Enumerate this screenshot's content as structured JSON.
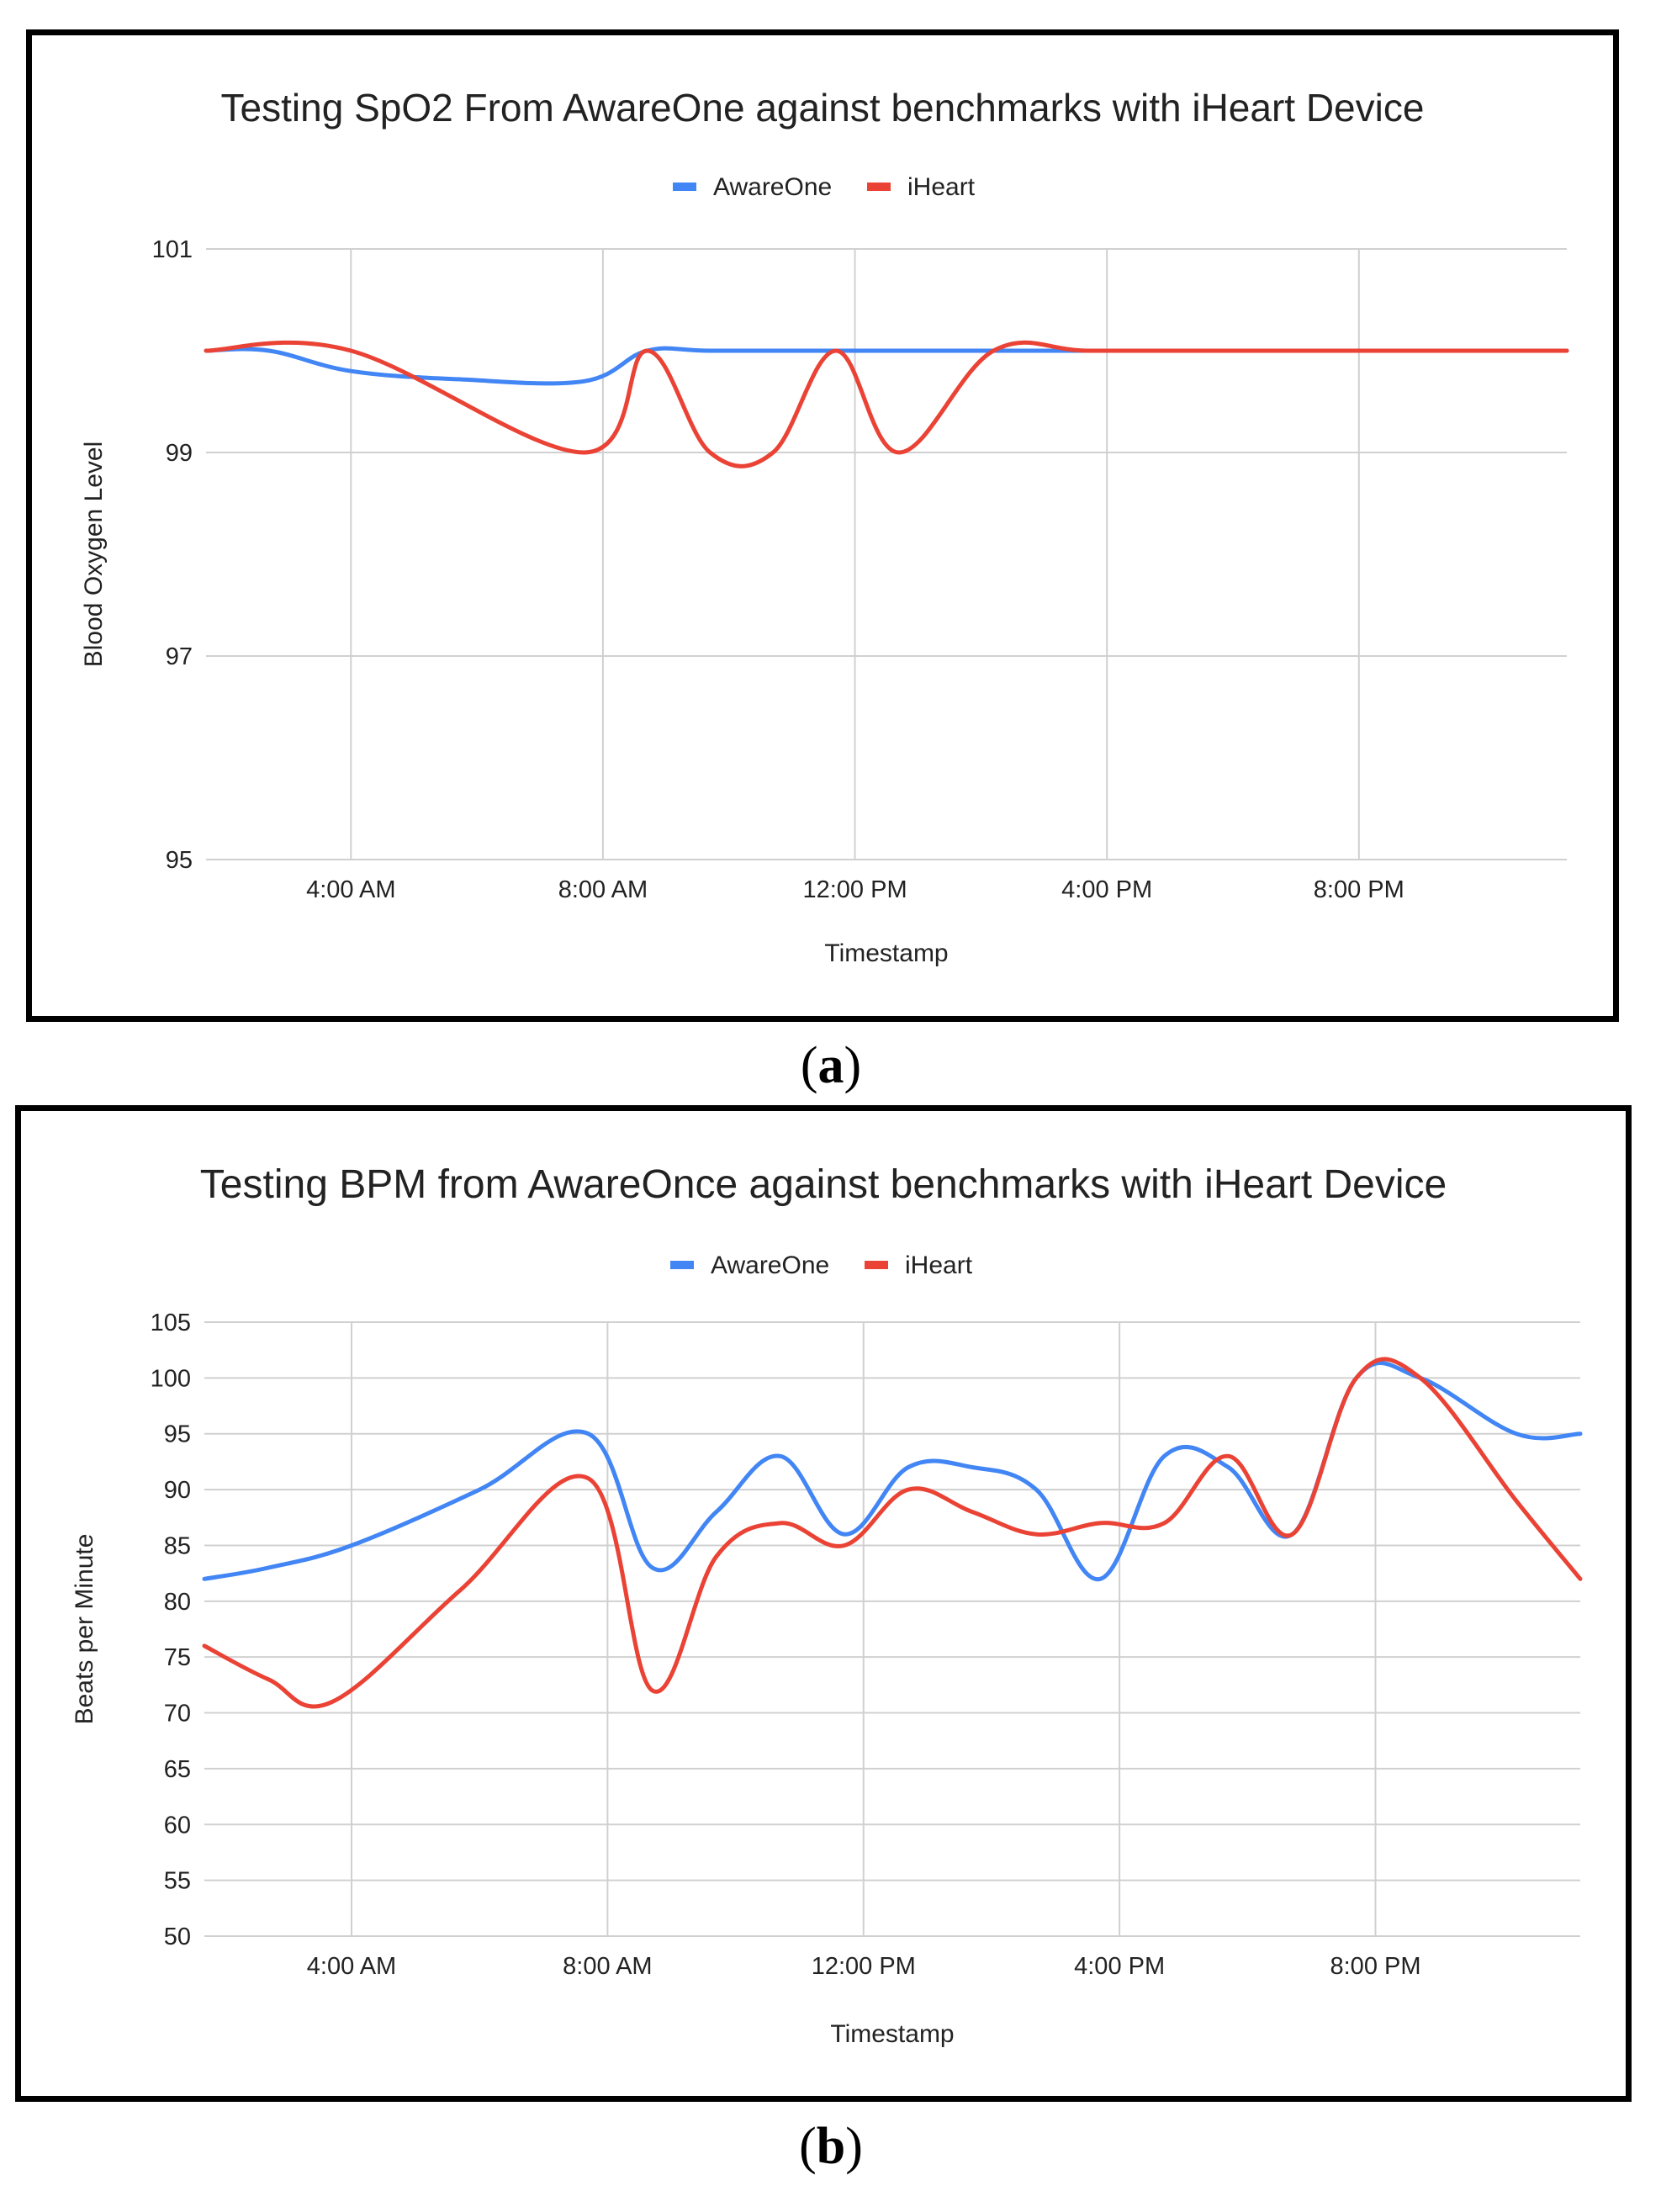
{
  "colors": {
    "aware": "#4285F4",
    "iheart": "#EA4335",
    "grid": "#d0d0d0",
    "text": "#222222"
  },
  "chart_data": [
    {
      "type": "line",
      "title": "Testing SpO2 From AwareOne against benchmarks with iHeart Device",
      "xlabel": "Timestamp",
      "ylabel": "Blood Oxygen Level",
      "ylim": [
        95,
        101
      ],
      "yticks": [
        "95",
        "97",
        "99",
        "101"
      ],
      "xlim": [
        2,
        23.6
      ],
      "xticks": [
        {
          "value": 4.3,
          "label": "4:00 AM"
        },
        {
          "value": 8.3,
          "label": "8:00 AM"
        },
        {
          "value": 12.3,
          "label": "12:00 PM"
        },
        {
          "value": 16.3,
          "label": "4:00 PM"
        },
        {
          "value": 20.3,
          "label": "8:00 PM"
        }
      ],
      "legend": "top",
      "series": [
        {
          "name": "AwareOne",
          "x": [
            2,
            3,
            4.3,
            6,
            8,
            9,
            10,
            12,
            14,
            16,
            18,
            20,
            23.6
          ],
          "values": [
            100,
            100,
            99.8,
            99.72,
            99.7,
            100,
            100,
            100,
            100,
            100,
            100,
            100,
            100
          ]
        },
        {
          "name": "iHeart",
          "x": [
            2,
            4.3,
            8,
            9,
            10,
            11,
            12,
            13,
            14.5,
            16,
            18,
            20,
            23.6
          ],
          "values": [
            100,
            100,
            99,
            100,
            99,
            99,
            100,
            99,
            100,
            100,
            100,
            100,
            100
          ]
        }
      ],
      "caption_label": "a"
    },
    {
      "type": "line",
      "title": "Testing BPM from AwareOnce against benchmarks with iHeart Device",
      "xlabel": "Timestamp",
      "ylabel": "Beats per Minute",
      "ylim": [
        50,
        105
      ],
      "yticks": [
        "50",
        "55",
        "60",
        "65",
        "70",
        "75",
        "80",
        "85",
        "90",
        "95",
        "100",
        "105"
      ],
      "xlim": [
        2,
        23.5
      ],
      "xticks": [
        {
          "value": 4.3,
          "label": "4:00 AM"
        },
        {
          "value": 8.3,
          "label": "8:00 AM"
        },
        {
          "value": 12.3,
          "label": "12:00 PM"
        },
        {
          "value": 16.3,
          "label": "4:00 PM"
        },
        {
          "value": 20.3,
          "label": "8:00 PM"
        }
      ],
      "legend": "top",
      "series": [
        {
          "name": "AwareOne",
          "x": [
            2,
            3,
            4.3,
            6.3,
            8,
            9,
            10,
            11,
            12,
            13,
            14,
            15,
            16,
            17,
            18,
            19,
            20,
            21,
            22.5,
            23.5
          ],
          "values": [
            82,
            83,
            85,
            90,
            95,
            83,
            88,
            93,
            86,
            92,
            92,
            90,
            82,
            93,
            92,
            86,
            100,
            100,
            95,
            95
          ]
        },
        {
          "name": "iHeart",
          "x": [
            2,
            3,
            4,
            6,
            8,
            9,
            10,
            11,
            12,
            13,
            14,
            15,
            16,
            17,
            18,
            19,
            20,
            21,
            22.5,
            23.5
          ],
          "values": [
            76,
            73,
            71,
            81,
            91,
            72,
            84,
            87,
            85,
            90,
            88,
            86,
            87,
            87,
            93,
            86,
            100,
            100,
            89,
            82
          ]
        }
      ],
      "caption_label": "b"
    }
  ]
}
